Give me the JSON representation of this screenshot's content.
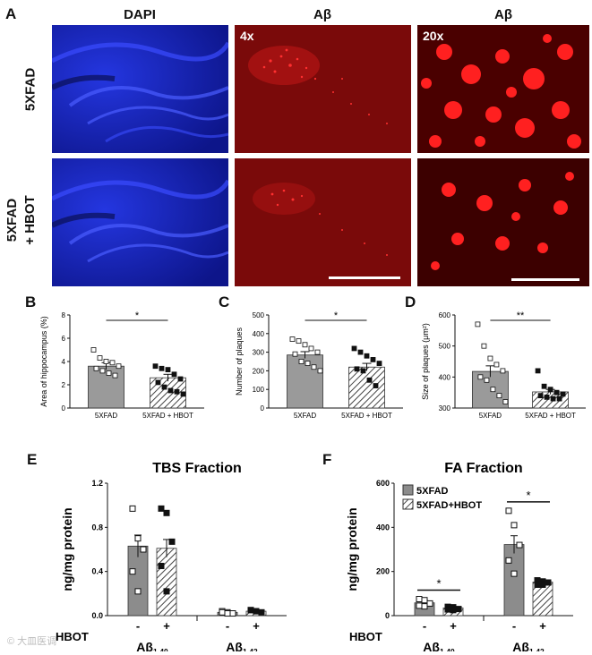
{
  "panel_a": {
    "letter": "A",
    "columns": [
      "DAPI",
      "Aβ",
      "Aβ"
    ],
    "rows": [
      "5XFAD",
      "5XFAD\n+ HBOT"
    ],
    "magnifications": [
      "4x",
      "20x"
    ],
    "colors": {
      "dapi": "#1a2ad4",
      "abeta_bg": "#7a0a0a",
      "abeta_signal": "#ff2020"
    }
  },
  "chart_data": [
    {
      "id": "B",
      "type": "bar",
      "categories": [
        "5XFAD",
        "5XFAD + HBOT"
      ],
      "values": [
        3.6,
        2.6
      ],
      "errors": [
        0.3,
        0.3
      ],
      "ylabel": "Area of hippocampus (%)",
      "ylim": [
        0,
        8
      ],
      "yticks": [
        0,
        2,
        4,
        6,
        8
      ],
      "points": [
        [
          5.0,
          4.3,
          4.0,
          3.9,
          3.6,
          3.4,
          3.2,
          3.0,
          2.8
        ],
        [
          3.6,
          3.4,
          3.3,
          2.9,
          2.5,
          2.2,
          1.8,
          1.5,
          1.4,
          1.2
        ]
      ],
      "significance": "*"
    },
    {
      "id": "C",
      "type": "bar",
      "categories": [
        "5XFAD",
        "5XFAD + HBOT"
      ],
      "values": [
        285,
        220
      ],
      "errors": [
        18,
        20
      ],
      "ylabel": "Number of plaques",
      "ylim": [
        0,
        500
      ],
      "yticks": [
        0,
        100,
        200,
        300,
        400,
        500
      ],
      "points": [
        [
          370,
          360,
          340,
          320,
          300,
          290,
          250,
          240,
          220,
          200
        ],
        [
          320,
          300,
          280,
          260,
          240,
          210,
          200,
          150,
          120
        ]
      ],
      "significance": "*"
    },
    {
      "id": "D",
      "type": "bar",
      "categories": [
        "5XFAD",
        "5XFAD + HBOT"
      ],
      "values": [
        418,
        352
      ],
      "errors": [
        18,
        8
      ],
      "ylabel": "Size of plaques (μm²)",
      "ylim": [
        300,
        600
      ],
      "yticks": [
        300,
        400,
        500,
        600
      ],
      "points": [
        [
          570,
          500,
          460,
          440,
          420,
          400,
          390,
          360,
          340,
          320
        ],
        [
          420,
          370,
          360,
          350,
          345,
          340,
          335,
          330,
          330
        ]
      ],
      "significance": "**"
    },
    {
      "id": "E",
      "type": "bar",
      "title": "TBS Fraction",
      "ylabel": "ng/mg protein",
      "ylim": [
        0,
        1.2
      ],
      "yticks": [
        0.0,
        0.4,
        0.8,
        1.2
      ],
      "groups": [
        "Aβ1-40",
        "Aβ1-42"
      ],
      "hbot_label": "HBOT",
      "hbot_signs": [
        "-",
        "+",
        "-",
        "+"
      ],
      "values": [
        0.63,
        0.61,
        0.03,
        0.04
      ],
      "errors": [
        0.1,
        0.08,
        0.01,
        0.01
      ],
      "points": [
        [
          0.97,
          0.7,
          0.6,
          0.4,
          0.22
        ],
        [
          0.97,
          0.93,
          0.67,
          0.45,
          0.22
        ],
        [
          0.04,
          0.03,
          0.02,
          0.03,
          0.02
        ],
        [
          0.05,
          0.04,
          0.03,
          0.05,
          0.04
        ]
      ],
      "significance": []
    },
    {
      "id": "F",
      "type": "bar",
      "title": "FA Fraction",
      "ylabel": "ng/mg protein",
      "ylim": [
        0,
        600
      ],
      "yticks": [
        0,
        200,
        400,
        600
      ],
      "groups": [
        "Aβ1-40",
        "Aβ1-42"
      ],
      "hbot_label": "HBOT",
      "hbot_signs": [
        "-",
        "+",
        "-",
        "+"
      ],
      "legend": [
        "5XFAD",
        "5XFAD+HBOT"
      ],
      "legend_position": "top-left",
      "values": [
        58,
        35,
        322,
        152
      ],
      "errors": [
        10,
        5,
        40,
        10
      ],
      "points": [
        [
          75,
          70,
          55,
          45,
          42
        ],
        [
          40,
          38,
          30,
          28,
          25
        ],
        [
          475,
          410,
          320,
          250,
          190
        ],
        [
          160,
          155,
          150,
          140,
          140
        ]
      ],
      "significance": [
        "*",
        "*"
      ]
    }
  ],
  "watermark": "© 大皿医调"
}
